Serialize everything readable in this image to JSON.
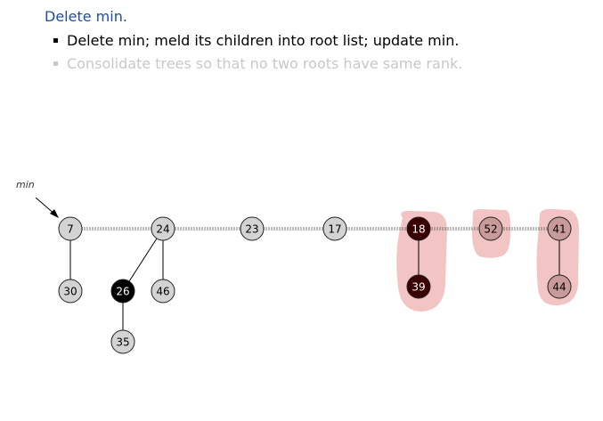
{
  "heading": "Delete min.",
  "bullets": [
    "Delete min; meld its children into root list; update min.",
    "Consolidate trees so that no two roots have same rank."
  ],
  "min_pointer_label": "min",
  "colors": {
    "title": "#1f4e9a",
    "normal_node": "#d3d3d3",
    "marked_node": "#000000",
    "dark_highlight_node": "#3a0000",
    "pink_highlight_node": "#c99a9a",
    "highlight_blob": "#f2c4c4"
  },
  "nodes": [
    {
      "id": "n7",
      "key": "7",
      "style": "normal"
    },
    {
      "id": "n24",
      "key": "24",
      "style": "normal"
    },
    {
      "id": "n23",
      "key": "23",
      "style": "normal"
    },
    {
      "id": "n17",
      "key": "17",
      "style": "normal"
    },
    {
      "id": "n18",
      "key": "18",
      "style": "dark"
    },
    {
      "id": "n52",
      "key": "52",
      "style": "pink"
    },
    {
      "id": "n41",
      "key": "41",
      "style": "pink"
    },
    {
      "id": "n30",
      "key": "30",
      "style": "normal"
    },
    {
      "id": "n26",
      "key": "26",
      "style": "marked"
    },
    {
      "id": "n46",
      "key": "46",
      "style": "normal"
    },
    {
      "id": "n39",
      "key": "39",
      "style": "dark"
    },
    {
      "id": "n44",
      "key": "44",
      "style": "pink"
    },
    {
      "id": "n35",
      "key": "35",
      "style": "normal"
    }
  ],
  "root_list": [
    "n7",
    "n24",
    "n23",
    "n17",
    "n18",
    "n52",
    "n41"
  ],
  "edges": [
    [
      "n7",
      "n30"
    ],
    [
      "n24",
      "n26"
    ],
    [
      "n24",
      "n46"
    ],
    [
      "n26",
      "n35"
    ],
    [
      "n18",
      "n39"
    ],
    [
      "n41",
      "n44"
    ]
  ]
}
